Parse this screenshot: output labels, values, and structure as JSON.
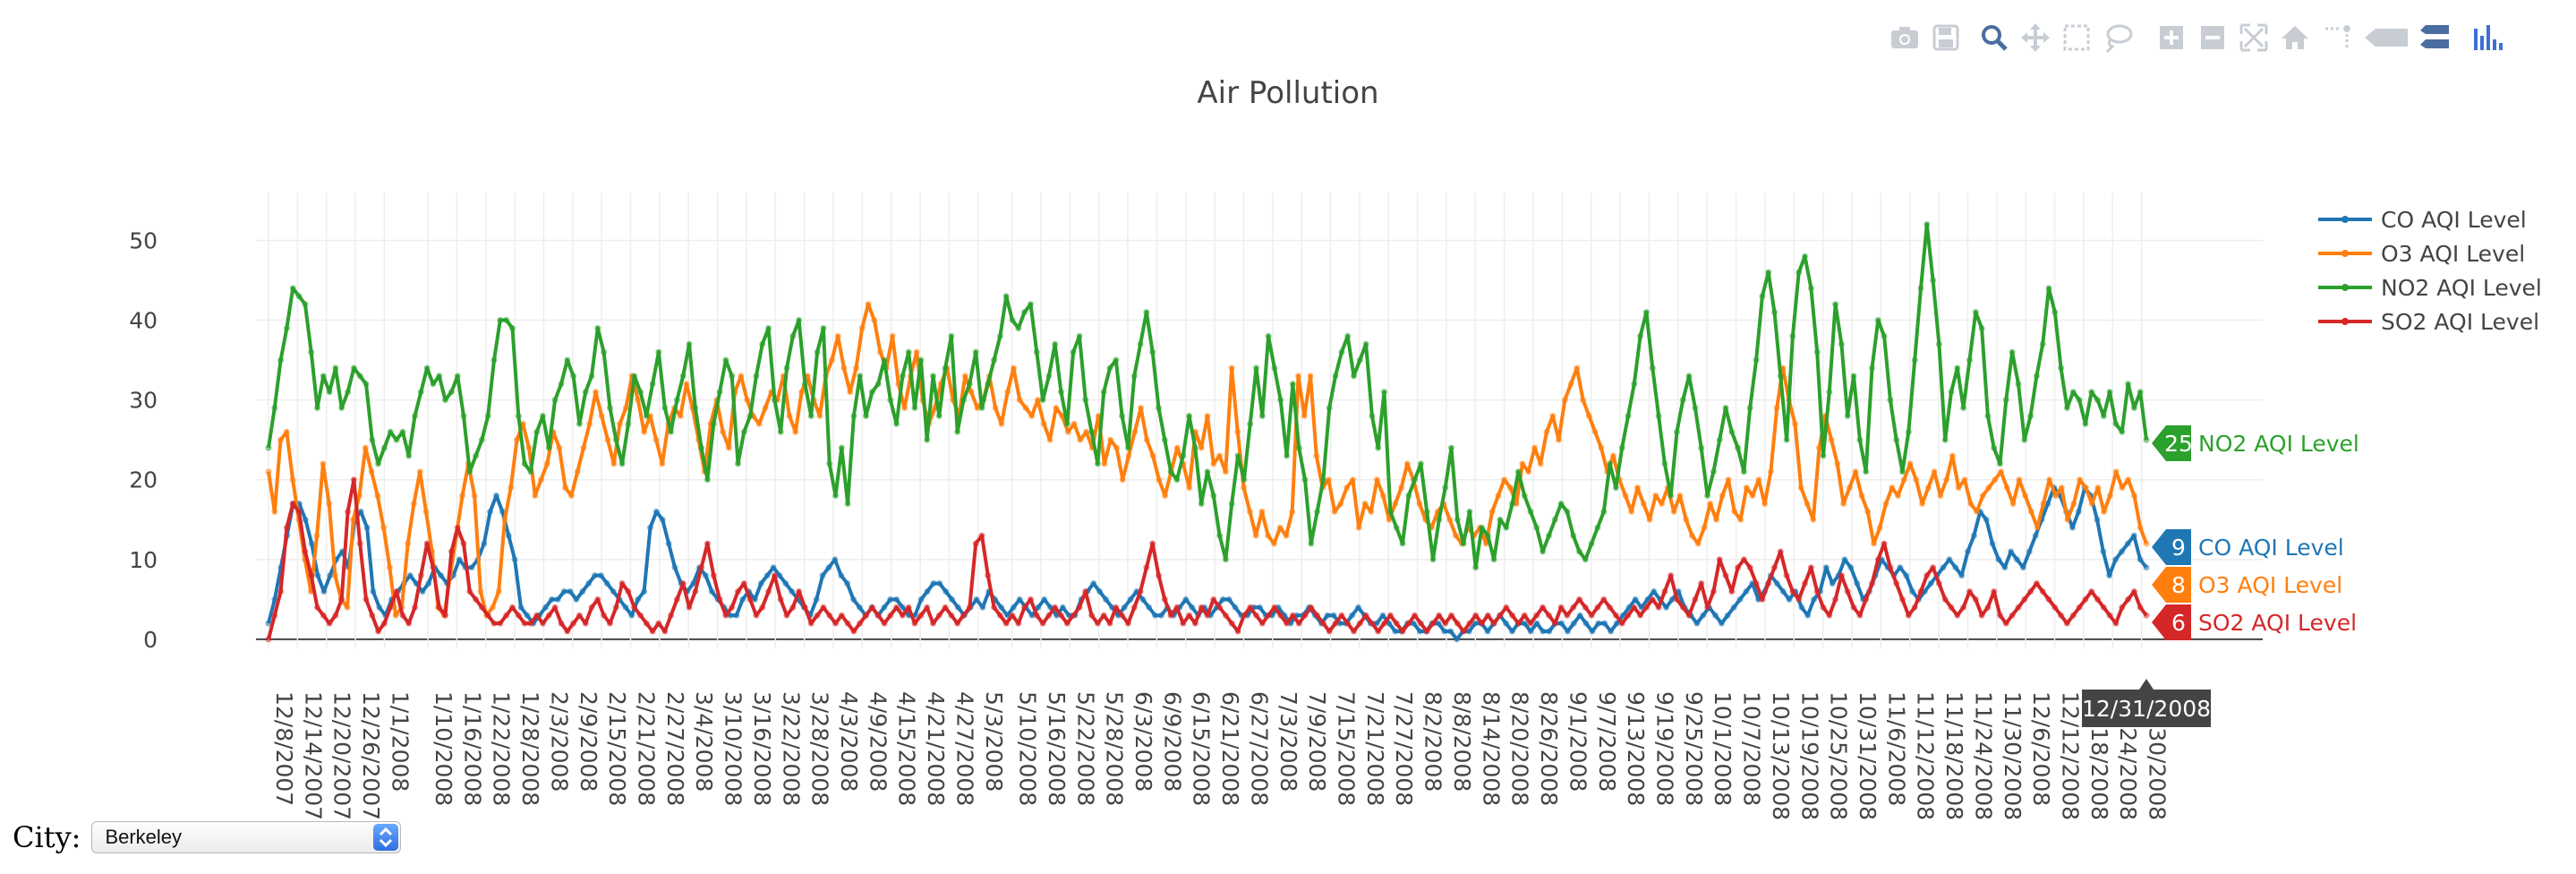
{
  "city_selector": {
    "label": "City:",
    "selected": "Berkeley"
  },
  "hover": {
    "x_label": "12/31/2008",
    "items": [
      {
        "series": "NO2 AQI Level",
        "value": "25",
        "label": "NO2 AQI Level",
        "color": "#2ca02c"
      },
      {
        "series": "CO AQI Level",
        "value": "9",
        "label": "CO AQI Level",
        "color": "#1f77b4"
      },
      {
        "series": "O3 AQI Level",
        "value": "8",
        "label": "O3 AQI Level",
        "color": "#ff7f0e"
      },
      {
        "series": "SO2 AQI Level",
        "value": "6",
        "label": "SO2 AQI Level",
        "color": "#d62728"
      }
    ]
  },
  "modebar": [
    "camera-icon",
    "save-icon",
    "zoom-icon",
    "pan-icon",
    "box-select-icon",
    "lasso-select-icon",
    "zoom-in-icon",
    "zoom-out-icon",
    "autoscale-icon",
    "home-icon",
    "spike-lines-icon",
    "hover-closest-icon",
    "hover-compare-icon",
    "plotly-logo-icon"
  ],
  "chart_data": {
    "type": "line",
    "title": "Air Pollution",
    "xlabel": "",
    "ylabel": "",
    "ylim": [
      -4.5,
      56
    ],
    "yticks": [
      0,
      10,
      20,
      30,
      40,
      50
    ],
    "grid": true,
    "legend_position": "top-right",
    "x_start": "12/8/2007",
    "x_end": "12/31/2008",
    "x_tick_labels": [
      "12/8/2007",
      "12/14/2007",
      "12/20/2007",
      "12/26/2007",
      "1/1/2008",
      "1/10/2008",
      "1/16/2008",
      "1/22/2008",
      "1/28/2008",
      "2/3/2008",
      "2/9/2008",
      "2/15/2008",
      "2/21/2008",
      "2/27/2008",
      "3/4/2008",
      "3/10/2008",
      "3/16/2008",
      "3/22/2008",
      "3/28/2008",
      "4/3/2008",
      "4/9/2008",
      "4/15/2008",
      "4/21/2008",
      "4/27/2008",
      "5/3/2008",
      "5/10/2008",
      "5/16/2008",
      "5/22/2008",
      "5/28/2008",
      "6/3/2008",
      "6/9/2008",
      "6/15/2008",
      "6/21/2008",
      "6/27/2008",
      "7/3/2008",
      "7/9/2008",
      "7/15/2008",
      "7/21/2008",
      "7/27/2008",
      "8/2/2008",
      "8/8/2008",
      "8/14/2008",
      "8/20/2008",
      "8/26/2008",
      "9/1/2008",
      "9/7/2008",
      "9/13/2008",
      "9/19/2008",
      "9/25/2008",
      "10/1/2008",
      "10/7/2008",
      "10/13/2008",
      "10/19/2008",
      "10/25/2008",
      "10/31/2008",
      "11/6/2008",
      "11/12/2008",
      "11/18/2008",
      "11/24/2008",
      "11/30/2008",
      "12/6/2008",
      "12/12/2008",
      "12/18/2008",
      "12/24/2008",
      "12/30/2008"
    ],
    "series": [
      {
        "name": "CO AQI Level",
        "color": "#1f77b4",
        "values": [
          2,
          5,
          9,
          13,
          17,
          17,
          15,
          12,
          8,
          6,
          8,
          10,
          11,
          9,
          15,
          16,
          14,
          6,
          4,
          3,
          5,
          6,
          7,
          8,
          7,
          6,
          7,
          9,
          8,
          7,
          8,
          10,
          9,
          9,
          10,
          12,
          16,
          18,
          16,
          13,
          10,
          4,
          3,
          2,
          3,
          4,
          5,
          5,
          6,
          6,
          5,
          6,
          7,
          8,
          8,
          7,
          6,
          5,
          4,
          3,
          5,
          6,
          14,
          16,
          15,
          12,
          9,
          7,
          6,
          7,
          9,
          8,
          6,
          5,
          4,
          3,
          3,
          5,
          6,
          5,
          7,
          8,
          9,
          8,
          7,
          6,
          5,
          4,
          3,
          5,
          8,
          9,
          10,
          8,
          7,
          5,
          4,
          3,
          4,
          3,
          4,
          5,
          5,
          4,
          3,
          3,
          5,
          6,
          7,
          7,
          6,
          5,
          4,
          3,
          4,
          5,
          4,
          6,
          5,
          4,
          3,
          4,
          5,
          4,
          3,
          4,
          5,
          4,
          3,
          4,
          3,
          3,
          5,
          6,
          7,
          6,
          5,
          4,
          3,
          4,
          5,
          6,
          5,
          4,
          3,
          3,
          4,
          3,
          4,
          5,
          4,
          3,
          4,
          3,
          4,
          5,
          5,
          4,
          3,
          3,
          4,
          4,
          3,
          3,
          4,
          3,
          2,
          3,
          3,
          4,
          3,
          2,
          3,
          3,
          2,
          2,
          3,
          4,
          3,
          2,
          2,
          3,
          2,
          1,
          1,
          2,
          2,
          1,
          1,
          2,
          2,
          1,
          1,
          0,
          1,
          1,
          2,
          2,
          1,
          2,
          3,
          2,
          1,
          2,
          2,
          1,
          2,
          1,
          1,
          2,
          2,
          1,
          2,
          3,
          2,
          1,
          2,
          2,
          1,
          2,
          3,
          4,
          5,
          4,
          5,
          6,
          5,
          4,
          5,
          6,
          4,
          3,
          2,
          3,
          4,
          3,
          2,
          3,
          4,
          5,
          6,
          7,
          5,
          6,
          8,
          7,
          6,
          5,
          6,
          4,
          3,
          5,
          6,
          9,
          7,
          8,
          10,
          9,
          7,
          5,
          6,
          8,
          10,
          9,
          8,
          9,
          8,
          6,
          5,
          6,
          7,
          8,
          9,
          10,
          9,
          8,
          11,
          13,
          16,
          15,
          12,
          10,
          9,
          11,
          10,
          9,
          11,
          13,
          15,
          17,
          19,
          18,
          16,
          14,
          16,
          19,
          18,
          15,
          11,
          8,
          10,
          11,
          12,
          13,
          10,
          9
        ],
        "end_value": 9
      },
      {
        "name": "O3 AQI Level",
        "color": "#ff7f0e",
        "values": [
          21,
          16,
          25,
          26,
          20,
          15,
          10,
          6,
          13,
          22,
          17,
          8,
          5,
          4,
          15,
          18,
          24,
          21,
          18,
          14,
          9,
          3,
          4,
          12,
          17,
          21,
          16,
          11,
          4,
          3,
          8,
          13,
          18,
          22,
          18,
          6,
          3,
          4,
          6,
          15,
          19,
          25,
          27,
          24,
          18,
          20,
          22,
          26,
          24,
          19,
          18,
          21,
          24,
          27,
          31,
          28,
          25,
          22,
          27,
          29,
          33,
          30,
          26,
          28,
          25,
          22,
          27,
          29,
          28,
          32,
          29,
          25,
          21,
          27,
          30,
          26,
          24,
          31,
          33,
          30,
          28,
          27,
          29,
          31,
          30,
          33,
          28,
          26,
          31,
          33,
          30,
          28,
          33,
          35,
          38,
          34,
          31,
          34,
          39,
          42,
          40,
          36,
          34,
          38,
          32,
          29,
          33,
          36,
          30,
          27,
          29,
          32,
          34,
          30,
          28,
          33,
          31,
          29,
          30,
          33,
          29,
          27,
          31,
          34,
          30,
          29,
          28,
          30,
          27,
          25,
          29,
          28,
          26,
          27,
          25,
          26,
          24,
          28,
          22,
          25,
          24,
          20,
          23,
          26,
          29,
          25,
          23,
          20,
          18,
          21,
          24,
          22,
          19,
          26,
          24,
          28,
          22,
          23,
          21,
          34,
          26,
          19,
          16,
          13,
          16,
          13,
          12,
          14,
          13,
          16,
          33,
          28,
          33,
          23,
          19,
          20,
          16,
          17,
          19,
          20,
          14,
          17,
          16,
          20,
          18,
          15,
          17,
          19,
          22,
          20,
          17,
          15,
          14,
          16,
          17,
          15,
          13,
          12,
          14,
          13,
          14,
          12,
          16,
          18,
          20,
          19,
          17,
          22,
          21,
          24,
          22,
          26,
          28,
          25,
          30,
          32,
          34,
          30,
          28,
          26,
          24,
          21,
          23,
          20,
          18,
          16,
          19,
          17,
          15,
          18,
          17,
          19,
          16,
          18,
          15,
          13,
          12,
          14,
          17,
          15,
          18,
          20,
          16,
          15,
          19,
          18,
          20,
          17,
          21,
          29,
          34,
          30,
          27,
          19,
          17,
          15,
          24,
          28,
          25,
          22,
          17,
          19,
          21,
          18,
          16,
          12,
          14,
          17,
          19,
          18,
          20,
          22,
          20,
          17,
          19,
          21,
          18,
          20,
          23,
          19,
          20,
          17,
          16,
          18,
          19,
          20,
          21,
          19,
          17,
          20,
          18,
          16,
          14,
          17,
          20,
          18,
          19,
          15,
          17,
          20,
          19,
          17,
          19,
          16,
          18,
          21,
          19,
          20,
          18,
          14,
          12
        ],
        "end_value": 8
      },
      {
        "name": "NO2 AQI Level",
        "color": "#2ca02c",
        "values": [
          24,
          29,
          35,
          39,
          44,
          43,
          42,
          36,
          29,
          33,
          31,
          34,
          29,
          31,
          34,
          33,
          32,
          25,
          22,
          24,
          26,
          25,
          26,
          23,
          28,
          31,
          34,
          32,
          33,
          30,
          31,
          33,
          28,
          21,
          23,
          25,
          28,
          35,
          40,
          40,
          39,
          28,
          22,
          21,
          26,
          28,
          24,
          30,
          32,
          35,
          33,
          27,
          31,
          33,
          39,
          36,
          29,
          25,
          22,
          27,
          33,
          31,
          28,
          32,
          36,
          29,
          26,
          30,
          33,
          37,
          29,
          24,
          20,
          27,
          31,
          35,
          33,
          22,
          26,
          28,
          33,
          37,
          39,
          30,
          26,
          34,
          38,
          40,
          32,
          28,
          36,
          39,
          22,
          18,
          24,
          17,
          28,
          33,
          28,
          31,
          32,
          35,
          30,
          27,
          33,
          36,
          29,
          35,
          25,
          33,
          28,
          34,
          38,
          26,
          30,
          32,
          36,
          29,
          32,
          35,
          38,
          43,
          40,
          39,
          41,
          42,
          36,
          30,
          33,
          37,
          31,
          27,
          36,
          38,
          30,
          26,
          22,
          31,
          34,
          35,
          28,
          24,
          33,
          37,
          41,
          36,
          29,
          25,
          21,
          20,
          23,
          28,
          24,
          17,
          21,
          18,
          13,
          10,
          17,
          23,
          20,
          27,
          34,
          28,
          38,
          34,
          30,
          23,
          32,
          24,
          20,
          12,
          16,
          20,
          29,
          33,
          36,
          38,
          33,
          35,
          37,
          28,
          24,
          31,
          16,
          14,
          12,
          18,
          20,
          22,
          16,
          10,
          15,
          19,
          24,
          15,
          12,
          16,
          9,
          14,
          13,
          10,
          15,
          14,
          17,
          21,
          18,
          16,
          14,
          11,
          13,
          15,
          17,
          16,
          13,
          11,
          10,
          12,
          14,
          16,
          22,
          19,
          24,
          28,
          32,
          38,
          41,
          34,
          28,
          22,
          18,
          26,
          30,
          33,
          29,
          24,
          18,
          21,
          25,
          29,
          26,
          24,
          21,
          29,
          35,
          43,
          46,
          41,
          33,
          25,
          38,
          46,
          48,
          44,
          36,
          23,
          31,
          42,
          37,
          28,
          33,
          25,
          21,
          34,
          40,
          38,
          30,
          25,
          21,
          26,
          35,
          44,
          52,
          45,
          37,
          25,
          31,
          34,
          29,
          35,
          41,
          39,
          28,
          24,
          22,
          30,
          36,
          32,
          25,
          28,
          33,
          37,
          44,
          41,
          34,
          29,
          31,
          30,
          27,
          31,
          30,
          28,
          31,
          27,
          26,
          32,
          29,
          31,
          25
        ],
        "end_value": 25
      },
      {
        "name": "SO2 AQI Level",
        "color": "#d62728",
        "values": [
          0,
          3,
          6,
          14,
          17,
          16,
          11,
          8,
          4,
          3,
          2,
          3,
          5,
          16,
          20,
          12,
          5,
          3,
          1,
          2,
          4,
          6,
          3,
          2,
          4,
          8,
          12,
          9,
          4,
          3,
          11,
          14,
          12,
          6,
          5,
          4,
          3,
          2,
          2,
          3,
          4,
          3,
          2,
          2,
          3,
          2,
          3,
          4,
          2,
          1,
          2,
          3,
          2,
          4,
          5,
          3,
          2,
          4,
          7,
          6,
          4,
          3,
          2,
          1,
          2,
          1,
          3,
          5,
          7,
          4,
          6,
          9,
          12,
          8,
          5,
          3,
          4,
          6,
          7,
          5,
          3,
          4,
          6,
          8,
          5,
          3,
          4,
          6,
          4,
          2,
          3,
          4,
          3,
          2,
          3,
          2,
          1,
          2,
          3,
          4,
          3,
          2,
          3,
          4,
          3,
          4,
          2,
          3,
          4,
          2,
          3,
          4,
          3,
          2,
          3,
          4,
          12,
          13,
          8,
          4,
          3,
          2,
          3,
          2,
          4,
          5,
          3,
          2,
          3,
          4,
          3,
          2,
          3,
          4,
          6,
          3,
          2,
          3,
          2,
          4,
          3,
          2,
          4,
          6,
          9,
          12,
          8,
          5,
          3,
          4,
          2,
          3,
          2,
          4,
          3,
          5,
          4,
          3,
          2,
          1,
          3,
          4,
          3,
          2,
          3,
          4,
          3,
          2,
          3,
          2,
          3,
          4,
          3,
          2,
          1,
          2,
          3,
          2,
          1,
          2,
          3,
          2,
          1,
          2,
          3,
          2,
          1,
          2,
          3,
          2,
          1,
          2,
          3,
          2,
          3,
          2,
          1,
          2,
          3,
          2,
          3,
          2,
          3,
          4,
          3,
          2,
          3,
          2,
          3,
          4,
          3,
          2,
          4,
          3,
          4,
          5,
          4,
          3,
          4,
          5,
          4,
          3,
          2,
          3,
          4,
          3,
          4,
          5,
          4,
          6,
          8,
          5,
          4,
          3,
          5,
          7,
          4,
          6,
          10,
          8,
          6,
          9,
          10,
          9,
          7,
          5,
          7,
          9,
          11,
          8,
          6,
          5,
          7,
          9,
          6,
          4,
          3,
          5,
          8,
          6,
          4,
          3,
          5,
          7,
          10,
          12,
          9,
          7,
          5,
          3,
          4,
          6,
          8,
          9,
          7,
          5,
          4,
          3,
          4,
          6,
          5,
          3,
          4,
          6,
          3,
          2,
          3,
          4,
          5,
          6,
          7,
          6,
          5,
          4,
          3,
          2,
          3,
          4,
          5,
          6,
          5,
          4,
          3,
          2,
          4,
          5,
          6,
          4,
          3
        ],
        "end_value": 6
      }
    ]
  }
}
